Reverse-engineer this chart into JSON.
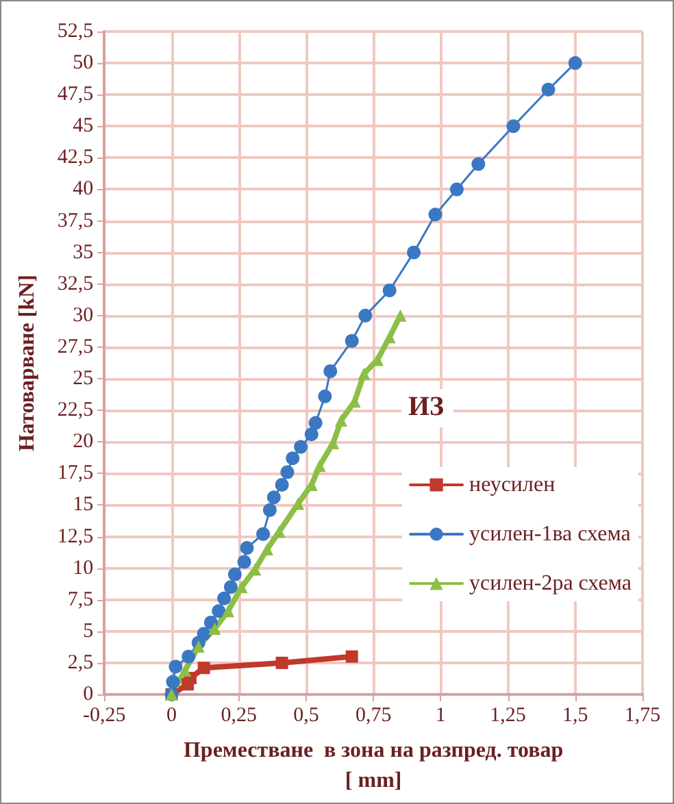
{
  "chart_data": {
    "type": "line",
    "xlabel": "Преместване  в зона на разпред. товар\n[ mm]",
    "ylabel": "Натоварване [kN]",
    "annotations": [
      "ИЗ"
    ],
    "xlim": [
      -0.25,
      1.75
    ],
    "xticks": [
      {
        "value": -0.25,
        "label": "-0,25"
      },
      0,
      {
        "value": 0.25,
        "label": "0,25"
      },
      {
        "value": 0.5,
        "label": "0,5"
      },
      {
        "value": 0.75,
        "label": "0,75"
      },
      1,
      {
        "value": 1.25,
        "label": "1,25"
      },
      {
        "value": 1.5,
        "label": "1,5"
      },
      {
        "value": 1.75,
        "label": "1,75"
      }
    ],
    "ylim": [
      0,
      52.5
    ],
    "yticks": [
      0,
      {
        "value": 2.5,
        "label": "2,5"
      },
      5,
      {
        "value": 7.5,
        "label": "7,5"
      },
      10,
      {
        "value": 12.5,
        "label": "12,5"
      },
      15,
      {
        "value": 17.5,
        "label": "17,5"
      },
      20,
      {
        "value": 22.5,
        "label": "22,5"
      },
      25,
      {
        "value": 27.5,
        "label": "27,5"
      },
      30,
      {
        "value": 32.5,
        "label": "32,5"
      },
      35,
      {
        "value": 37.5,
        "label": "37,5"
      },
      40,
      {
        "value": 42.5,
        "label": "42,5"
      },
      45,
      {
        "value": 47.5,
        "label": "47,5"
      },
      50,
      {
        "value": 52.5,
        "label": "52,5"
      }
    ],
    "grid": true,
    "legend": "right",
    "series": [
      {
        "name": "неусилен",
        "color": "#c0392b",
        "marker": "square",
        "x": [
          0,
          0.06,
          0.07,
          0.12,
          0.41,
          0.67
        ],
        "values": [
          0,
          0.8,
          1.3,
          2.1,
          2.5,
          3.0
        ]
      },
      {
        "name": "усилен-1ва схема",
        "color": "#3a78c3",
        "marker": "circle",
        "x": [
          0,
          0.005,
          0.015,
          0.063,
          0.1,
          0.12,
          0.146,
          0.175,
          0.195,
          0.22,
          0.235,
          0.27,
          0.28,
          0.34,
          0.365,
          0.38,
          0.41,
          0.43,
          0.45,
          0.48,
          0.52,
          0.535,
          0.57,
          0.59,
          0.67,
          0.72,
          0.81,
          0.9,
          0.98,
          1.06,
          1.14,
          1.27,
          1.4,
          1.5
        ],
        "values": [
          0,
          1,
          2.2,
          3.0,
          4.1,
          4.8,
          5.7,
          6.6,
          7.6,
          8.5,
          9.5,
          10.5,
          11.6,
          12.7,
          14.6,
          15.6,
          16.6,
          17.6,
          18.7,
          19.6,
          20.6,
          21.5,
          23.6,
          25.6,
          28,
          30,
          32,
          35,
          38,
          40,
          42,
          45,
          47.9,
          50
        ]
      },
      {
        "name": "усилен-2ра схема",
        "color": "#8cbf45",
        "marker": "triangle",
        "x": [
          0,
          0.05,
          0.1,
          0.16,
          0.21,
          0.26,
          0.31,
          0.355,
          0.4,
          0.47,
          0.52,
          0.55,
          0.6,
          0.63,
          0.68,
          0.715,
          0.765,
          0.81,
          0.85
        ],
        "values": [
          0,
          1.9,
          3.8,
          5.2,
          6.6,
          8.5,
          9.9,
          11.5,
          12.9,
          15.1,
          16.6,
          18.1,
          19.9,
          21.7,
          23.2,
          25.4,
          26.5,
          28.3,
          30
        ]
      }
    ]
  }
}
